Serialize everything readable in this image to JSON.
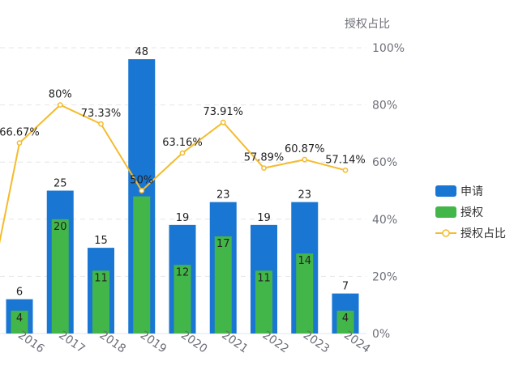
{
  "chart_data": {
    "type": "bar",
    "categories": [
      "2016",
      "2017",
      "2018",
      "2019",
      "2020",
      "2021",
      "2022",
      "2023",
      "2024"
    ],
    "series": [
      {
        "name": "申请",
        "type": "bar",
        "values": [
          6,
          25,
          15,
          48,
          19,
          23,
          19,
          23,
          7
        ],
        "labels": [
          "6",
          "25",
          "15",
          "48",
          "19",
          "23",
          "19",
          "23",
          "7"
        ],
        "color": "#1976d2"
      },
      {
        "name": "授权",
        "type": "bar",
        "values": [
          4,
          20,
          11,
          24,
          12,
          17,
          11,
          14,
          4
        ],
        "labels": [
          "4",
          "20",
          "11",
          "",
          "12",
          "17",
          "11",
          "14",
          "4"
        ],
        "color": "#43b649"
      },
      {
        "name": "授权占比",
        "type": "line",
        "axis": "right",
        "values": [
          66.67,
          80,
          73.33,
          50,
          63.16,
          73.91,
          57.89,
          60.87,
          57.14
        ],
        "labels": [
          "66.67%",
          "80%",
          "73.33%",
          "50%",
          "63.16%",
          "73.91%",
          "57.89%",
          "60.87%",
          "57.14%"
        ],
        "color": "#f4bb2c"
      }
    ],
    "left_axis": {
      "ylim": [
        0,
        50
      ]
    },
    "right_axis": {
      "label": "授权占比",
      "ylim": [
        0,
        100
      ],
      "ticks": [
        "0%",
        "20%",
        "40%",
        "60%",
        "80%",
        "100%"
      ]
    },
    "grid": true,
    "legend": "right"
  }
}
